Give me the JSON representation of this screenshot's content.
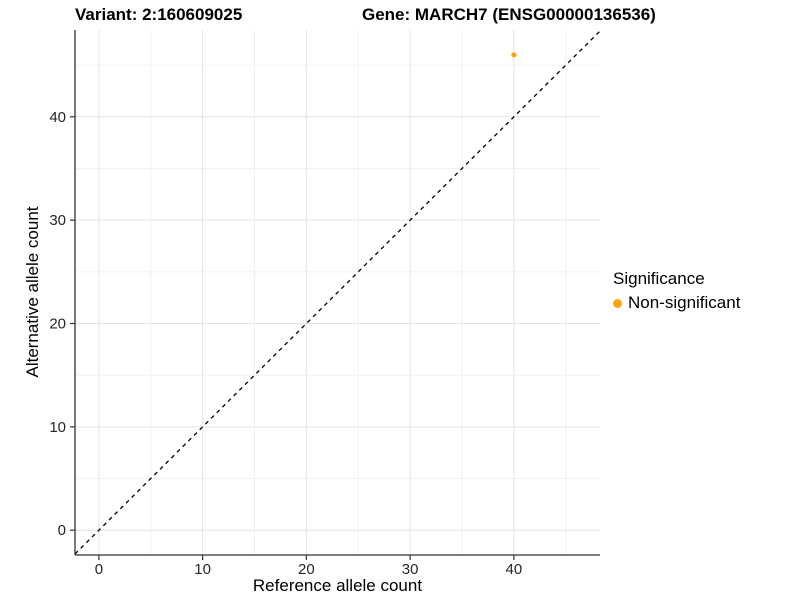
{
  "figure": {
    "titles": {
      "left": "Variant: 2:160609025",
      "right": "Gene: MARCH7 (ENSG00000136536)"
    }
  },
  "axes": {
    "x_label": "Reference allele count",
    "y_label": "Alternative allele count"
  },
  "legend": {
    "title": "Significance",
    "items": [
      {
        "label": "Non-significant",
        "color": "#FFA500",
        "marker": "dot"
      }
    ]
  },
  "chart_data": {
    "type": "scatter",
    "title": "Variant: 2:160609025 — Gene: MARCH7 (ENSG00000136536)",
    "xlabel": "Reference allele count",
    "ylabel": "Alternative allele count",
    "xlim": [
      -2.3,
      48.3
    ],
    "ylim": [
      -2.4,
      48.4
    ],
    "x_ticks": [
      0,
      10,
      20,
      30,
      40
    ],
    "y_ticks": [
      0,
      10,
      20,
      30,
      40
    ],
    "x_minor_ticks": [
      5,
      15,
      25,
      35,
      45
    ],
    "y_minor_ticks": [
      5,
      15,
      25,
      35,
      45
    ],
    "grid": true,
    "legend_position": "right",
    "series": [
      {
        "name": "Non-significant",
        "color": "#FFA500",
        "marker_radius": 2.6,
        "points": [
          {
            "x": 40,
            "y": 46
          }
        ]
      }
    ],
    "reference_line": {
      "type": "identity",
      "style": "dashed",
      "color": "#000000"
    }
  },
  "style": {
    "background": "#FFFFFF",
    "axis_line_color": "#333333",
    "tick_mark_color": "#333333",
    "tick_text_color": "#262626",
    "grid_major_color": "#E4E4E4",
    "grid_minor_color": "#F0F0F0",
    "point_color": "#FFA500"
  }
}
